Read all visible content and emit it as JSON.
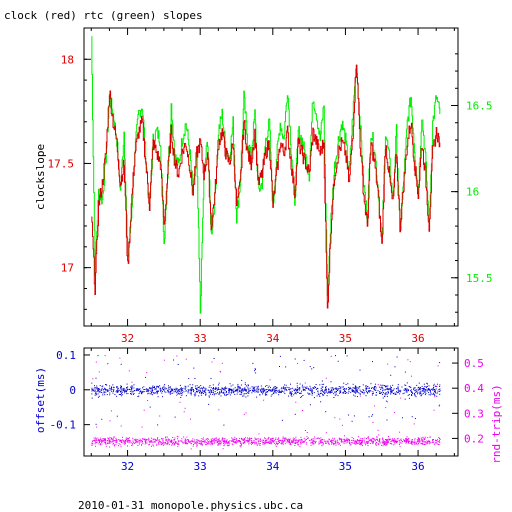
{
  "title": "clock (red) rtc (green) slopes",
  "footer": "2010-01-31 monopole.physics.ubc.ca",
  "colors": {
    "red": "#dd0000",
    "green": "#00ee00",
    "blue": "#0000cc",
    "magenta": "#ee00ee",
    "frame": "#000000"
  },
  "chart_data": [
    {
      "type": "line",
      "id": "clock-slopes",
      "title": "clock (red) rtc (green) slopes",
      "ylabel": "clockslope",
      "x_ticks": [
        32,
        33,
        34,
        35,
        36
      ],
      "x_tick_labels": [
        "32",
        "33",
        "34",
        "35",
        "36"
      ],
      "xlim": [
        31.4,
        36.55
      ],
      "y_left": {
        "lim": [
          16.72,
          18.15
        ],
        "ticks": [
          17,
          17.5,
          18
        ],
        "tick_labels": [
          "17",
          "17.5",
          "18"
        ]
      },
      "y_right": {
        "lim": [
          15.22,
          16.95
        ],
        "ticks": [
          15.5,
          16,
          16.5
        ],
        "tick_labels": [
          "15.5",
          "16",
          "16.5"
        ]
      },
      "series": [
        {
          "name": "clock",
          "axis": "left",
          "color": "#dd0000",
          "x": [
            31.5,
            31.55,
            31.6,
            31.65,
            31.7,
            31.75,
            31.8,
            31.85,
            31.9,
            31.95,
            32.0,
            32.05,
            32.1,
            32.15,
            32.2,
            32.25,
            32.3,
            32.35,
            32.4,
            32.45,
            32.5,
            32.55,
            32.6,
            32.65,
            32.7,
            32.75,
            32.8,
            32.85,
            32.9,
            32.95,
            33.0,
            33.05,
            33.1,
            33.15,
            33.2,
            33.25,
            33.3,
            33.35,
            33.4,
            33.45,
            33.5,
            33.55,
            33.6,
            33.65,
            33.7,
            33.75,
            33.8,
            33.85,
            33.9,
            33.95,
            34.0,
            34.05,
            34.1,
            34.15,
            34.2,
            34.25,
            34.3,
            34.35,
            34.4,
            34.45,
            34.5,
            34.55,
            34.6,
            34.65,
            34.7,
            34.75,
            34.8,
            34.85,
            34.9,
            34.95,
            35.0,
            35.05,
            35.1,
            35.15,
            35.2,
            35.25,
            35.3,
            35.35,
            35.4,
            35.45,
            35.5,
            35.55,
            35.6,
            35.65,
            35.7,
            35.75,
            35.8,
            35.85,
            35.9,
            35.95,
            36.0,
            36.05,
            36.1,
            36.15,
            36.2,
            36.25,
            36.3
          ],
          "values": [
            17.25,
            16.9,
            17.3,
            17.4,
            17.55,
            17.85,
            17.7,
            17.6,
            17.4,
            17.5,
            17.0,
            17.3,
            17.55,
            17.65,
            17.7,
            17.5,
            17.3,
            17.6,
            17.55,
            17.5,
            17.2,
            17.45,
            17.65,
            17.5,
            17.45,
            17.55,
            17.6,
            17.5,
            17.35,
            17.55,
            17.6,
            17.45,
            17.55,
            17.2,
            17.35,
            17.6,
            17.65,
            17.55,
            17.5,
            17.6,
            17.3,
            17.4,
            17.7,
            17.55,
            17.5,
            17.65,
            17.4,
            17.45,
            17.55,
            17.6,
            17.3,
            17.45,
            17.6,
            17.55,
            17.65,
            17.5,
            17.35,
            17.6,
            17.55,
            17.5,
            17.45,
            17.65,
            17.6,
            17.55,
            17.6,
            16.8,
            17.2,
            17.45,
            17.55,
            17.6,
            17.55,
            17.4,
            17.65,
            18.0,
            17.6,
            17.35,
            17.2,
            17.6,
            17.5,
            17.35,
            17.1,
            17.6,
            17.45,
            17.3,
            17.55,
            17.2,
            17.4,
            17.6,
            17.7,
            17.5,
            17.35,
            17.6,
            17.45,
            17.2,
            17.55,
            17.65,
            17.6
          ]
        },
        {
          "name": "rtc",
          "axis": "right",
          "color": "#00ee00",
          "x": [
            31.5,
            31.55,
            31.6,
            31.65,
            31.7,
            31.75,
            31.8,
            31.85,
            31.9,
            31.95,
            32.0,
            32.05,
            32.1,
            32.15,
            32.2,
            32.25,
            32.3,
            32.35,
            32.4,
            32.45,
            32.5,
            32.55,
            32.6,
            32.65,
            32.7,
            32.75,
            32.8,
            32.85,
            32.9,
            32.95,
            33.0,
            33.05,
            33.1,
            33.15,
            33.2,
            33.25,
            33.3,
            33.35,
            33.4,
            33.45,
            33.5,
            33.55,
            33.6,
            33.65,
            33.7,
            33.75,
            33.8,
            33.85,
            33.9,
            33.95,
            34.0,
            34.05,
            34.1,
            34.15,
            34.2,
            34.25,
            34.3,
            34.35,
            34.4,
            34.45,
            34.5,
            34.55,
            34.6,
            34.65,
            34.7,
            34.75,
            34.8,
            34.85,
            34.9,
            34.95,
            35.0,
            35.05,
            35.1,
            35.15,
            35.2,
            35.25,
            35.3,
            35.35,
            35.4,
            35.45,
            35.5,
            35.55,
            35.6,
            35.65,
            35.7,
            35.75,
            35.8,
            35.85,
            35.9,
            35.95,
            36.0,
            36.05,
            36.1,
            36.15,
            36.2,
            36.25,
            36.3
          ],
          "values": [
            16.9,
            15.55,
            16.0,
            15.95,
            16.2,
            16.55,
            16.45,
            16.3,
            16.0,
            16.35,
            15.6,
            15.85,
            16.25,
            16.45,
            16.5,
            16.2,
            15.9,
            16.3,
            16.35,
            16.3,
            15.7,
            16.1,
            16.5,
            16.2,
            16.15,
            16.3,
            16.4,
            16.25,
            16.0,
            16.2,
            15.3,
            16.1,
            16.3,
            15.75,
            15.95,
            16.35,
            16.45,
            16.25,
            16.2,
            16.4,
            15.85,
            16.05,
            16.55,
            16.3,
            16.2,
            16.45,
            16.0,
            16.05,
            16.3,
            16.4,
            15.9,
            16.2,
            16.4,
            16.3,
            16.6,
            16.25,
            15.95,
            16.35,
            16.3,
            16.2,
            16.1,
            16.55,
            16.45,
            16.3,
            16.5,
            15.4,
            15.85,
            16.15,
            16.3,
            16.4,
            16.3,
            16.1,
            16.45,
            16.75,
            16.4,
            16.05,
            15.85,
            16.35,
            16.25,
            16.0,
            15.7,
            16.35,
            16.2,
            15.95,
            16.35,
            15.75,
            16.05,
            16.4,
            16.55,
            16.25,
            16.0,
            16.45,
            16.2,
            15.8,
            16.4,
            16.55,
            16.45
          ]
        }
      ]
    },
    {
      "type": "scatter",
      "id": "offset-roundtrip",
      "xlabel": "",
      "x_ticks": [
        32,
        33,
        34,
        35,
        36
      ],
      "x_tick_labels": [
        "32",
        "33",
        "34",
        "35",
        "36"
      ],
      "xlim": [
        31.4,
        36.55
      ],
      "y_left": {
        "label": "offset(ms)",
        "lim": [
          -0.19,
          0.12
        ],
        "ticks": [
          0.1,
          0,
          -0.1
        ],
        "tick_labels": [
          "0.1",
          "0",
          "-0.1"
        ]
      },
      "y_right": {
        "label": "rnd-trip(ms)",
        "lim": [
          0.13,
          0.56
        ],
        "ticks": [
          0.2,
          0.3,
          0.4,
          0.5
        ],
        "tick_labels": [
          "0.2",
          "0.3",
          "0.4",
          "0.5"
        ]
      },
      "series": [
        {
          "name": "offset",
          "axis": "left",
          "color": "#0000cc",
          "x_range": [
            31.5,
            36.3
          ],
          "center": 0.0,
          "spread": 0.012,
          "outlier_range": [
            -0.1,
            0.1
          ],
          "count": 1400
        },
        {
          "name": "rnd-trip",
          "axis": "right",
          "color": "#ee00ee",
          "x_range": [
            31.5,
            36.3
          ],
          "center": 0.19,
          "spread": 0.012,
          "outlier_range": [
            0.16,
            0.55
          ],
          "count": 1400
        }
      ]
    }
  ]
}
